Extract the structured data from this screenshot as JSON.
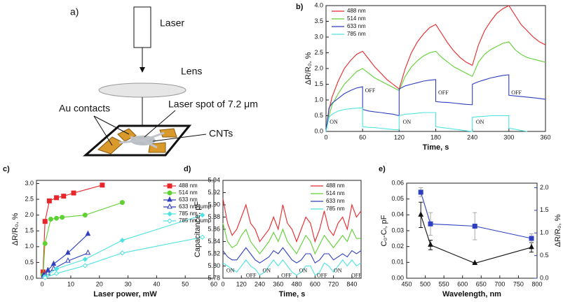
{
  "diagram": {
    "label": "a)",
    "laser": "Laser",
    "lens": "Lens",
    "spot": "Laser spot of 7.2 μm",
    "contacts": "Au contacts",
    "cnts": "CNTs"
  },
  "chart_data": [
    {
      "type": "line",
      "label": "b)",
      "xlabel": "Time, s",
      "ylabel": "ΔR/R₀, %",
      "xlim": [
        0,
        360
      ],
      "xticks": [
        0,
        60,
        120,
        180,
        240,
        300,
        360
      ],
      "ylim": [
        0,
        4
      ],
      "yticks": [
        {
          "value": 0,
          "label": "0.0"
        },
        0.5,
        {
          "value": 1,
          "label": "1.0"
        },
        1.5,
        {
          "value": 2,
          "label": "2.0"
        },
        2.5,
        {
          "value": 3,
          "label": "3.0"
        },
        3.5,
        {
          "value": 4,
          "label": "4.0"
        }
      ],
      "legend": "upper left",
      "annotations": [
        "OFF",
        "OFF",
        "OFF",
        "ON",
        "ON",
        "ON"
      ],
      "series": [
        {
          "name": "488 nm",
          "color": "#e8262a",
          "x": [
            0,
            5,
            10,
            20,
            30,
            40,
            50,
            60,
            70,
            80,
            90,
            100,
            110,
            120,
            130,
            140,
            150,
            160,
            170,
            180,
            190,
            200,
            210,
            220,
            230,
            240,
            250,
            260,
            270,
            280,
            290,
            300,
            310,
            320,
            330,
            340,
            350,
            360
          ],
          "values": [
            0,
            0.7,
            1.1,
            1.6,
            2.0,
            2.25,
            2.45,
            2.55,
            2.3,
            2.05,
            1.85,
            1.65,
            1.5,
            1.35,
            2.0,
            2.5,
            2.85,
            3.1,
            3.3,
            3.4,
            3.1,
            2.8,
            2.55,
            2.35,
            2.2,
            2.1,
            2.75,
            3.2,
            3.5,
            3.75,
            3.9,
            4.0,
            3.7,
            3.4,
            3.2,
            3.0,
            2.85,
            2.75
          ]
        },
        {
          "name": "514 nm",
          "color": "#5fd132",
          "x": [
            0,
            5,
            10,
            20,
            30,
            40,
            50,
            60,
            70,
            80,
            90,
            100,
            110,
            120,
            130,
            140,
            150,
            160,
            170,
            180,
            190,
            200,
            210,
            220,
            230,
            240,
            250,
            260,
            270,
            280,
            290,
            300,
            310,
            320,
            330,
            340,
            350,
            360
          ],
          "values": [
            0,
            0.5,
            0.85,
            1.2,
            1.5,
            1.7,
            1.9,
            2.0,
            1.85,
            1.7,
            1.6,
            1.5,
            1.4,
            1.3,
            1.75,
            2.05,
            2.25,
            2.4,
            2.5,
            2.55,
            2.35,
            2.2,
            2.05,
            1.95,
            1.85,
            1.75,
            2.2,
            2.45,
            2.6,
            2.7,
            2.8,
            2.85,
            2.6,
            2.45,
            2.35,
            2.3,
            2.25,
            2.2
          ]
        },
        {
          "name": "633 nm",
          "color": "#2f3fbf",
          "x": [
            0,
            5,
            10,
            20,
            30,
            40,
            50,
            60,
            60,
            70,
            80,
            90,
            100,
            110,
            120,
            120,
            130,
            140,
            150,
            160,
            170,
            180,
            180,
            190,
            200,
            210,
            220,
            230,
            240,
            240,
            250,
            260,
            270,
            280,
            290,
            300,
            300,
            310,
            320,
            330,
            340,
            350,
            360
          ],
          "values": [
            0,
            0.75,
            0.9,
            1.05,
            1.2,
            1.3,
            1.38,
            1.42,
            0.7,
            0.65,
            0.62,
            0.6,
            0.57,
            0.55,
            0.5,
            1.35,
            1.45,
            1.5,
            1.55,
            1.6,
            1.63,
            1.65,
            0.95,
            0.93,
            0.92,
            0.9,
            0.88,
            0.86,
            0.85,
            1.5,
            1.58,
            1.64,
            1.7,
            1.74,
            1.78,
            1.8,
            1.15,
            1.13,
            1.11,
            1.09,
            1.07,
            1.05,
            1.02
          ]
        },
        {
          "name": "785 nm",
          "color": "#4fe3e0",
          "x": [
            0,
            5,
            10,
            20,
            30,
            40,
            50,
            60,
            60,
            70,
            80,
            90,
            100,
            110,
            120,
            120,
            130,
            140,
            150,
            160,
            170,
            180,
            180,
            190,
            200,
            210,
            220,
            230,
            240,
            240,
            250,
            260,
            270,
            280,
            290,
            300,
            300,
            310,
            320,
            330
          ],
          "values": [
            0,
            0.45,
            0.55,
            0.65,
            0.7,
            0.72,
            0.74,
            0.75,
            0.15,
            0.13,
            0.12,
            0.1,
            0.08,
            0.06,
            0.05,
            0.5,
            0.55,
            0.56,
            0.58,
            0.6,
            0.6,
            0.6,
            0.15,
            0.12,
            0.1,
            0.07,
            0.05,
            0.02,
            0,
            0.45,
            0.47,
            0.48,
            0.5,
            0.5,
            0.5,
            0.5,
            0.1,
            0.07,
            0.03,
            0
          ]
        }
      ]
    },
    {
      "type": "line",
      "label": "c)",
      "xlabel": "Laser power, mW",
      "ylabel": "ΔR/R₀, %",
      "xlim": [
        -2,
        60
      ],
      "xticks": [
        0,
        10,
        20,
        30,
        40,
        50,
        60
      ],
      "ylim": [
        0,
        3.1
      ],
      "yticks": [
        {
          "value": 0,
          "label": "0.0"
        },
        0.5,
        {
          "value": 1,
          "label": "1.0"
        },
        1.5,
        {
          "value": 2,
          "label": "2.0"
        },
        2.5,
        {
          "value": 3,
          "label": "3.0"
        }
      ],
      "legend": "upper right",
      "series": [
        {
          "name": "488 nm",
          "color": "#e8262a",
          "marker": "square",
          "x": [
            0.3,
            1,
            2.5,
            5,
            7.5,
            11,
            21
          ],
          "values": [
            0.2,
            1.8,
            2.45,
            2.55,
            2.6,
            2.7,
            2.95
          ]
        },
        {
          "name": "514 nm",
          "color": "#5fd132",
          "marker": "circle",
          "x": [
            0.3,
            1,
            3,
            5,
            7,
            15,
            28
          ],
          "values": [
            0.1,
            1.1,
            1.87,
            1.9,
            1.93,
            2.0,
            2.4
          ]
        },
        {
          "name": "633 nm",
          "color": "#2f3fbf",
          "marker": "triangle",
          "x": [
            0.5,
            2,
            4,
            9,
            16
          ],
          "values": [
            0.1,
            0.25,
            0.45,
            0.8,
            1.4
          ]
        },
        {
          "name": "633 nm jump",
          "color": "#2f3fbf",
          "marker": "triangle-open",
          "x": [
            0.5,
            2,
            4,
            9,
            16
          ],
          "values": [
            0.05,
            0.15,
            0.3,
            0.55,
            0.8
          ]
        },
        {
          "name": "785 nm",
          "color": "#4fe3e0",
          "marker": "diamond",
          "x": [
            1,
            5,
            15,
            28,
            56
          ],
          "values": [
            0.05,
            0.3,
            0.6,
            1.2,
            2.0
          ]
        },
        {
          "name": "785 nm jump",
          "color": "#4fe3e0",
          "marker": "diamond-open",
          "x": [
            1,
            5,
            15,
            28,
            56
          ],
          "values": [
            0.02,
            0.15,
            0.4,
            0.8,
            1.3
          ]
        }
      ]
    },
    {
      "type": "line",
      "label": "d)",
      "xlabel": "Time, s",
      "ylabel": "Capacitance, pF",
      "xlim": [
        0,
        900
      ],
      "xticks": [
        0,
        120,
        240,
        360,
        480,
        600,
        720,
        840
      ],
      "ylim": [
        5.78,
        5.94
      ],
      "yticks": [
        5.78,
        {
          "value": 5.8,
          "label": "5.80"
        },
        5.82,
        5.84,
        5.86,
        5.88,
        {
          "value": 5.9,
          "label": "5.90"
        },
        5.92,
        5.94
      ],
      "legend": "upper right",
      "annotations": [
        "ON",
        "OFF",
        "ON",
        "OFF",
        "ON",
        "OFF",
        "ON",
        "OFF"
      ],
      "series": [
        {
          "name": "488 nm",
          "color": "#e8262a",
          "x": [
            0,
            30,
            60,
            90,
            120,
            150,
            180,
            210,
            240,
            270,
            300,
            330,
            360,
            390,
            420,
            450,
            480,
            510,
            540,
            570,
            600,
            630,
            660,
            690,
            720,
            750,
            780,
            810,
            840,
            870,
            900
          ],
          "values": [
            5.91,
            5.87,
            5.85,
            5.86,
            5.88,
            5.9,
            5.87,
            5.86,
            5.84,
            5.85,
            5.86,
            5.88,
            5.86,
            5.9,
            5.87,
            5.86,
            5.84,
            5.86,
            5.88,
            5.87,
            5.84,
            5.86,
            5.89,
            5.86,
            5.85,
            5.87,
            5.88,
            5.86,
            5.9,
            5.88,
            5.89
          ]
        },
        {
          "name": "514 nm",
          "color": "#5fd132",
          "x": [
            0,
            30,
            60,
            90,
            120,
            150,
            180,
            210,
            240,
            270,
            300,
            330,
            360,
            390,
            420,
            450,
            480,
            510,
            540,
            570,
            600,
            630,
            660,
            690,
            720,
            750,
            780,
            810,
            840,
            870,
            900
          ],
          "values": [
            5.87,
            5.84,
            5.83,
            5.835,
            5.85,
            5.86,
            5.84,
            5.83,
            5.82,
            5.83,
            5.84,
            5.855,
            5.84,
            5.86,
            5.84,
            5.83,
            5.82,
            5.835,
            5.85,
            5.84,
            5.82,
            5.835,
            5.85,
            5.84,
            5.83,
            5.84,
            5.85,
            5.84,
            5.86,
            5.845,
            5.845
          ]
        },
        {
          "name": "633 nm",
          "color": "#2f3fbf",
          "x": [
            0,
            30,
            60,
            90,
            120,
            150,
            180,
            210,
            240,
            270,
            300,
            330,
            360,
            390,
            420,
            450,
            480,
            510,
            540,
            570,
            600,
            630,
            660,
            690,
            720,
            750,
            780,
            810,
            840,
            870,
            900
          ],
          "values": [
            5.825,
            5.815,
            5.81,
            5.81,
            5.82,
            5.83,
            5.82,
            5.81,
            5.805,
            5.81,
            5.815,
            5.825,
            5.82,
            5.83,
            5.82,
            5.81,
            5.805,
            5.81,
            5.82,
            5.82,
            5.805,
            5.81,
            5.82,
            5.82,
            5.81,
            5.815,
            5.82,
            5.815,
            5.825,
            5.82,
            5.825
          ]
        },
        {
          "name": "785 nm",
          "color": "#4fe3e0",
          "x": [
            0,
            30,
            60,
            90,
            120,
            150,
            180,
            210,
            240,
            270,
            300,
            330,
            360,
            390,
            420,
            450,
            480,
            510,
            540,
            570,
            600,
            630,
            660,
            690,
            720,
            750,
            780,
            810,
            840,
            870,
            900
          ],
          "values": [
            5.805,
            5.8,
            5.795,
            5.79,
            5.8,
            5.81,
            5.8,
            5.795,
            5.785,
            5.79,
            5.8,
            5.81,
            5.8,
            5.81,
            5.8,
            5.79,
            5.785,
            5.79,
            5.8,
            5.8,
            5.785,
            5.79,
            5.805,
            5.8,
            5.79,
            5.8,
            5.81,
            5.8,
            5.81,
            5.8,
            5.805
          ]
        }
      ]
    },
    {
      "type": "errorbar",
      "label": "e)",
      "xlabel": "Wavelength, nm",
      "ylabel": "C₀-Cₗ, pF",
      "y2label": "ΔR/R₀, %",
      "xlim": [
        450,
        800
      ],
      "xticks": [
        450,
        500,
        550,
        600,
        650,
        700,
        750,
        800
      ],
      "ylim": [
        0,
        0.06
      ],
      "yticks": [
        {
          "value": 0,
          "label": "0.00"
        },
        0.01,
        0.02,
        0.03,
        0.04,
        0.05,
        0.06
      ],
      "y2lim": [
        0,
        2.1
      ],
      "y2ticks": [
        {
          "value": 0,
          "label": "0.0"
        },
        0.5,
        {
          "value": 1,
          "label": "1.0"
        },
        1.5,
        {
          "value": 2,
          "label": "2.0"
        }
      ],
      "y2color": "#2f3fbf",
      "series": [
        {
          "color": "#111111",
          "marker": "triangle",
          "errcolor": "#111111",
          "x": [
            488,
            514,
            633,
            785
          ],
          "values": [
            0.04,
            0.021,
            0.0095,
            0.0195
          ],
          "errors": [
            0.008,
            0.003,
            0,
            0.003
          ]
        },
        {
          "color": "#2f3fbf",
          "marker": "square",
          "errcolor": "#aaaaaa",
          "axis": "y2",
          "x": [
            488,
            514,
            633,
            785
          ],
          "values": [
            1.9,
            1.2,
            1.15,
            0.88
          ],
          "errors": [
            0.1,
            0.25,
            0.3,
            0.1
          ]
        }
      ]
    }
  ]
}
